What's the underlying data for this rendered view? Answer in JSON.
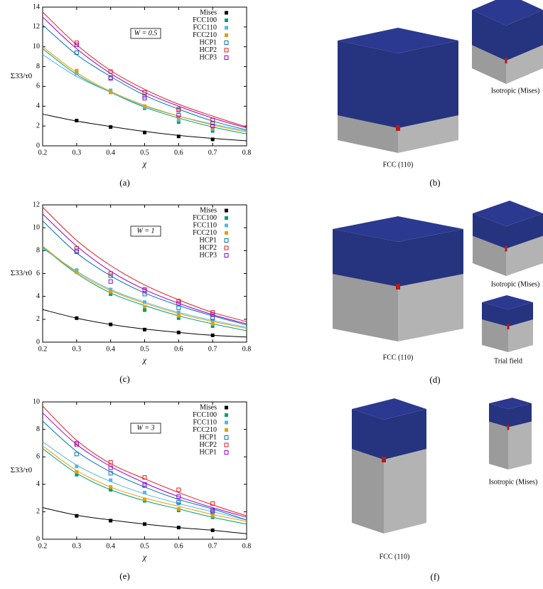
{
  "chart_data": [
    {
      "type": "line",
      "panel_label": "(a)",
      "annotation": "W = 0.5",
      "xlabel": "χ",
      "ylabel": "Σ33/τ0",
      "x": [
        0.2,
        0.3,
        0.4,
        0.5,
        0.6,
        0.7,
        0.8
      ],
      "xlim": [
        0.2,
        0.8
      ],
      "xticks": [
        0.2,
        0.3,
        0.4,
        0.5,
        0.6,
        0.7,
        0.8
      ],
      "ylim": [
        0,
        14
      ],
      "yticks": [
        0,
        2,
        4,
        6,
        8,
        10,
        12,
        14
      ],
      "series": [
        {
          "name": "Mises",
          "color": "#000000",
          "marker": "filled",
          "values": [
            3.2,
            2.5,
            1.95,
            1.45,
            1.05,
            0.75,
            0.5
          ],
          "points": [
            null,
            2.55,
            1.9,
            1.35,
            0.95,
            0.65,
            null
          ]
        },
        {
          "name": "FCC100",
          "color": "#009e73",
          "marker": "filled",
          "values": [
            9.8,
            7.2,
            5.4,
            3.9,
            2.8,
            1.9,
            1.2
          ],
          "points": [
            null,
            7.4,
            5.4,
            3.8,
            2.4,
            1.5,
            null
          ]
        },
        {
          "name": "FCC110",
          "color": "#56b4e9",
          "marker": "filled",
          "values": [
            9.2,
            7.0,
            5.4,
            4.0,
            3.0,
            2.2,
            1.5
          ],
          "points": [
            null,
            7.3,
            5.6,
            3.9,
            2.6,
            1.7,
            null
          ]
        },
        {
          "name": "FCC210",
          "color": "#e69f00",
          "marker": "filled",
          "values": [
            10.0,
            7.4,
            5.5,
            4.1,
            3.0,
            2.1,
            1.4
          ],
          "points": [
            null,
            7.6,
            5.4,
            4.0,
            2.9,
            1.8,
            null
          ]
        },
        {
          "name": "HCP1",
          "color": "#0072b2",
          "marker": "open",
          "values": [
            12.2,
            9.2,
            7.0,
            5.1,
            3.7,
            2.5,
            1.6
          ],
          "points": [
            null,
            9.4,
            6.9,
            5.0,
            3.6,
            2.3,
            null
          ]
        },
        {
          "name": "HCP2",
          "color": "#e41a1c",
          "marker": "open",
          "values": [
            13.5,
            10.2,
            7.6,
            5.7,
            4.2,
            3.0,
            1.9
          ],
          "points": [
            null,
            10.4,
            7.5,
            5.4,
            3.7,
            2.6,
            null
          ]
        },
        {
          "name": "HCP3",
          "color": "#9400d3",
          "marker": "open",
          "values": [
            13.0,
            9.8,
            7.3,
            5.4,
            4.0,
            2.8,
            1.8
          ],
          "points": [
            null,
            10.2,
            6.8,
            4.8,
            3.1,
            2.0,
            null
          ]
        }
      ]
    },
    {
      "type": "line",
      "panel_label": "(c)",
      "annotation": "W = 1",
      "xlabel": "χ",
      "ylabel": "Σ33/τ0",
      "x": [
        0.2,
        0.3,
        0.4,
        0.5,
        0.6,
        0.7,
        0.8
      ],
      "xlim": [
        0.2,
        0.8
      ],
      "xticks": [
        0.2,
        0.3,
        0.4,
        0.5,
        0.6,
        0.7,
        0.8
      ],
      "ylim": [
        0,
        12
      ],
      "yticks": [
        0,
        2,
        4,
        6,
        8,
        10,
        12
      ],
      "series": [
        {
          "name": "Mises",
          "color": "#000000",
          "marker": "filled",
          "values": [
            2.85,
            2.1,
            1.55,
            1.15,
            0.85,
            0.6,
            0.45
          ],
          "points": [
            null,
            2.1,
            1.55,
            1.1,
            0.85,
            0.6,
            null
          ]
        },
        {
          "name": "FCC100",
          "color": "#009e73",
          "marker": "filled",
          "values": [
            8.3,
            6.0,
            4.3,
            3.2,
            2.3,
            1.6,
            1.0
          ],
          "points": [
            null,
            6.2,
            4.2,
            2.8,
            2.1,
            1.4,
            null
          ]
        },
        {
          "name": "FCC110",
          "color": "#56b4e9",
          "marker": "filled",
          "values": [
            8.2,
            6.2,
            4.6,
            3.5,
            2.6,
            1.9,
            1.3
          ],
          "points": [
            null,
            6.3,
            4.6,
            3.5,
            2.6,
            1.9,
            null
          ]
        },
        {
          "name": "FCC210",
          "color": "#e69f00",
          "marker": "filled",
          "values": [
            8.4,
            6.1,
            4.5,
            3.4,
            2.5,
            1.8,
            1.2
          ],
          "points": [
            null,
            6.1,
            4.4,
            3.1,
            2.3,
            1.6,
            null
          ]
        },
        {
          "name": "HCP1",
          "color": "#0072b2",
          "marker": "open",
          "values": [
            10.6,
            7.8,
            5.8,
            4.3,
            3.2,
            2.3,
            1.5
          ],
          "points": [
            null,
            8.0,
            5.8,
            4.2,
            3.0,
            2.1,
            null
          ]
        },
        {
          "name": "HCP2",
          "color": "#e41a1c",
          "marker": "open",
          "values": [
            11.8,
            8.9,
            6.7,
            5.0,
            3.7,
            2.6,
            1.8
          ],
          "points": [
            null,
            8.2,
            6.0,
            4.6,
            3.6,
            2.6,
            null
          ]
        },
        {
          "name": "HCP3",
          "color": "#9400d3",
          "marker": "open",
          "values": [
            11.2,
            8.4,
            6.2,
            4.6,
            3.4,
            2.4,
            1.6
          ],
          "points": [
            null,
            7.9,
            5.3,
            4.5,
            3.4,
            2.4,
            null
          ]
        }
      ]
    },
    {
      "type": "line",
      "panel_label": "(e)",
      "annotation": "W = 3",
      "xlabel": "χ",
      "ylabel": "Σ33/τ0",
      "x": [
        0.2,
        0.3,
        0.4,
        0.5,
        0.6,
        0.7,
        0.8
      ],
      "xlim": [
        0.2,
        0.8
      ],
      "xticks": [
        0.2,
        0.3,
        0.4,
        0.5,
        0.6,
        0.7,
        0.8
      ],
      "ylim": [
        0,
        10
      ],
      "yticks": [
        0,
        2,
        4,
        6,
        8,
        10
      ],
      "series": [
        {
          "name": "Mises",
          "color": "#000000",
          "marker": "filled",
          "values": [
            2.3,
            1.75,
            1.4,
            1.1,
            0.85,
            0.65,
            0.4
          ],
          "points": [
            null,
            1.7,
            1.35,
            1.1,
            0.85,
            0.65,
            null
          ]
        },
        {
          "name": "FCC100",
          "color": "#009e73",
          "marker": "filled",
          "values": [
            6.6,
            4.8,
            3.6,
            2.8,
            2.2,
            1.6,
            1.1
          ],
          "points": [
            null,
            4.7,
            3.6,
            2.8,
            2.1,
            1.6,
            null
          ]
        },
        {
          "name": "FCC110",
          "color": "#56b4e9",
          "marker": "filled",
          "values": [
            7.1,
            5.4,
            4.2,
            3.3,
            2.6,
            2.0,
            1.4
          ],
          "points": [
            null,
            5.3,
            4.3,
            3.4,
            2.6,
            2.0,
            null
          ]
        },
        {
          "name": "FCC210",
          "color": "#e69f00",
          "marker": "filled",
          "values": [
            6.8,
            5.0,
            3.8,
            3.0,
            2.4,
            1.8,
            1.3
          ],
          "points": [
            null,
            4.9,
            3.8,
            2.9,
            2.2,
            1.7,
            null
          ]
        },
        {
          "name": "HCP1",
          "color": "#0072b2",
          "marker": "open",
          "values": [
            8.6,
            6.4,
            4.9,
            3.8,
            2.9,
            2.2,
            1.4
          ],
          "points": [
            null,
            6.2,
            4.8,
            3.9,
            2.7,
            2.0,
            null
          ]
        },
        {
          "name": "HCP2",
          "color": "#e41a1c",
          "marker": "open",
          "values": [
            9.7,
            7.2,
            5.5,
            4.4,
            3.4,
            2.5,
            1.7
          ],
          "points": [
            null,
            6.9,
            5.6,
            4.5,
            3.6,
            2.6,
            null
          ]
        },
        {
          "name": "HCP1",
          "color": "#9400d3",
          "marker": "open",
          "values": [
            9.2,
            6.9,
            5.3,
            4.1,
            3.1,
            2.3,
            1.6
          ],
          "points": [
            null,
            7.0,
            5.2,
            4.0,
            3.1,
            2.1,
            null
          ]
        }
      ]
    }
  ],
  "figures": [
    {
      "label": "(b)",
      "captions": [
        "FCC (110)",
        "Isotropic (Mises)"
      ]
    },
    {
      "label": "(d)",
      "captions": [
        "FCC (110)",
        "Isotropic (Mises)",
        "Trial field"
      ]
    },
    {
      "label": "(f)",
      "captions": [
        "FCC (110)",
        "Isotropic (Mises)"
      ]
    }
  ]
}
